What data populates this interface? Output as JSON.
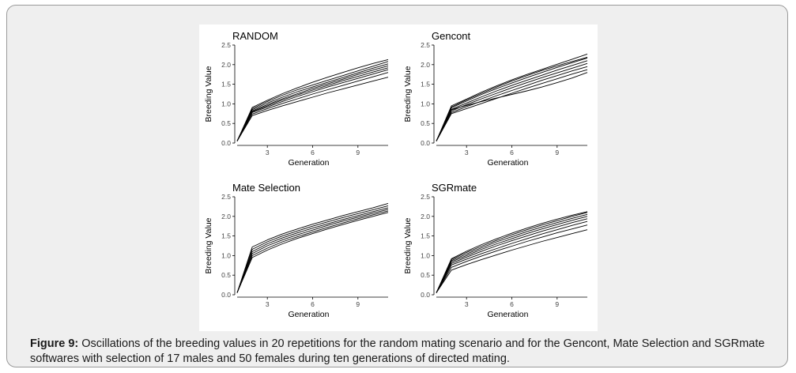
{
  "figure": {
    "caption_label": "Figure 9:",
    "caption_text": " Oscillations of the breeding values in 20 repetitions for the random mating scenario and for the Gencont, Mate Selection and SGRmate softwares with selection of 17 males and 50 females during ten generations of directed mating."
  },
  "chart_data": [
    {
      "type": "line",
      "title": "RANDOM",
      "xlabel": "Generation",
      "ylabel": "Breeding Value",
      "xlim": [
        1,
        11
      ],
      "ylim": [
        0,
        2.5
      ],
      "xticks": [
        "3",
        "6",
        "9"
      ],
      "yticks": [
        "0.0",
        "0.5",
        "1.0",
        "1.5",
        "2.0",
        "2.5"
      ],
      "grid": false,
      "x": [
        1,
        2,
        3,
        4,
        5,
        6,
        7,
        8,
        9,
        10,
        11
      ],
      "series": [
        {
          "values": [
            0.05,
            0.88,
            1.06,
            1.22,
            1.36,
            1.48,
            1.6,
            1.72,
            1.84,
            1.96,
            2.08
          ]
        },
        {
          "values": [
            0.05,
            0.85,
            1.02,
            1.17,
            1.31,
            1.43,
            1.55,
            1.67,
            1.79,
            1.91,
            2.02
          ]
        },
        {
          "values": [
            0.05,
            0.82,
            0.98,
            1.13,
            1.26,
            1.39,
            1.51,
            1.63,
            1.75,
            1.86,
            1.97
          ]
        },
        {
          "values": [
            0.05,
            0.8,
            0.95,
            1.1,
            1.23,
            1.35,
            1.47,
            1.59,
            1.7,
            1.81,
            1.92
          ]
        },
        {
          "values": [
            0.05,
            0.78,
            0.92,
            1.06,
            1.19,
            1.31,
            1.43,
            1.54,
            1.65,
            1.76,
            1.87
          ]
        },
        {
          "values": [
            0.05,
            0.74,
            0.88,
            1.01,
            1.13,
            1.25,
            1.36,
            1.47,
            1.58,
            1.69,
            1.8
          ]
        },
        {
          "values": [
            0.05,
            0.7,
            0.83,
            0.95,
            1.06,
            1.17,
            1.28,
            1.38,
            1.48,
            1.58,
            1.68
          ]
        },
        {
          "values": [
            0.05,
            0.91,
            1.09,
            1.26,
            1.41,
            1.55,
            1.68,
            1.8,
            1.92,
            2.03,
            2.13
          ]
        }
      ]
    },
    {
      "type": "line",
      "title": "Gencont",
      "xlabel": "Generation",
      "ylabel": "Breeding Value",
      "xlim": [
        1,
        11
      ],
      "ylim": [
        0,
        2.5
      ],
      "xticks": [
        "3",
        "6",
        "9"
      ],
      "yticks": [
        "0.0",
        "0.5",
        "1.0",
        "1.5",
        "2.0",
        "2.5"
      ],
      "grid": false,
      "x": [
        1,
        2,
        3,
        4,
        5,
        6,
        7,
        8,
        9,
        10,
        11
      ],
      "series": [
        {
          "values": [
            0.05,
            0.95,
            1.12,
            1.3,
            1.46,
            1.61,
            1.75,
            1.88,
            2.01,
            2.14,
            2.27
          ]
        },
        {
          "values": [
            0.05,
            0.9,
            1.07,
            1.24,
            1.39,
            1.53,
            1.67,
            1.8,
            1.93,
            2.05,
            2.17
          ]
        },
        {
          "values": [
            0.05,
            0.86,
            1.02,
            1.18,
            1.33,
            1.47,
            1.6,
            1.73,
            1.86,
            1.98,
            2.1
          ]
        },
        {
          "values": [
            0.05,
            0.82,
            0.98,
            1.13,
            1.27,
            1.41,
            1.54,
            1.67,
            1.79,
            1.91,
            2.03
          ]
        },
        {
          "values": [
            0.05,
            0.78,
            0.93,
            1.07,
            1.21,
            1.34,
            1.47,
            1.6,
            1.72,
            1.84,
            1.95
          ]
        },
        {
          "values": [
            0.05,
            0.75,
            0.88,
            1.01,
            1.14,
            1.27,
            1.4,
            1.52,
            1.64,
            1.76,
            1.87
          ]
        },
        {
          "values": [
            0.05,
            0.85,
            0.96,
            1.06,
            1.15,
            1.24,
            1.33,
            1.43,
            1.54,
            1.66,
            1.8
          ]
        },
        {
          "values": [
            0.05,
            0.92,
            1.1,
            1.27,
            1.43,
            1.58,
            1.72,
            1.85,
            1.97,
            2.08,
            2.19
          ]
        }
      ]
    },
    {
      "type": "line",
      "title": "Mate Selection",
      "xlabel": "Generation",
      "ylabel": "Breeding Value",
      "xlim": [
        1,
        11
      ],
      "ylim": [
        0,
        2.5
      ],
      "xticks": [
        "3",
        "6",
        "9"
      ],
      "yticks": [
        "0.0",
        "0.5",
        "1.0",
        "1.5",
        "2.0",
        "2.5"
      ],
      "grid": false,
      "x": [
        1,
        2,
        3,
        4,
        5,
        6,
        7,
        8,
        9,
        10,
        11
      ],
      "series": [
        {
          "values": [
            0.05,
            1.22,
            1.4,
            1.55,
            1.68,
            1.8,
            1.91,
            2.02,
            2.12,
            2.22,
            2.33
          ]
        },
        {
          "values": [
            0.05,
            1.16,
            1.35,
            1.5,
            1.63,
            1.75,
            1.86,
            1.97,
            2.07,
            2.17,
            2.27
          ]
        },
        {
          "values": [
            0.05,
            1.1,
            1.3,
            1.45,
            1.58,
            1.7,
            1.81,
            1.92,
            2.02,
            2.12,
            2.22
          ]
        },
        {
          "values": [
            0.05,
            1.05,
            1.25,
            1.4,
            1.53,
            1.65,
            1.77,
            1.88,
            1.98,
            2.08,
            2.18
          ]
        },
        {
          "values": [
            0.05,
            1.0,
            1.19,
            1.35,
            1.48,
            1.6,
            1.72,
            1.83,
            1.94,
            2.04,
            2.14
          ]
        },
        {
          "values": [
            0.05,
            0.95,
            1.14,
            1.3,
            1.44,
            1.56,
            1.68,
            1.79,
            1.9,
            2.0,
            2.1
          ]
        }
      ]
    },
    {
      "type": "line",
      "title": "SGRmate",
      "xlabel": "Generation",
      "ylabel": "Breeding Value",
      "xlim": [
        1,
        11
      ],
      "ylim": [
        0,
        2.5
      ],
      "xticks": [
        "3",
        "6",
        "9"
      ],
      "yticks": [
        "0.0",
        "0.5",
        "1.0",
        "1.5",
        "2.0",
        "2.5"
      ],
      "grid": false,
      "x": [
        1,
        2,
        3,
        4,
        5,
        6,
        7,
        8,
        9,
        10,
        11
      ],
      "series": [
        {
          "values": [
            0.05,
            0.9,
            1.08,
            1.24,
            1.39,
            1.53,
            1.66,
            1.78,
            1.89,
            2.0,
            2.1
          ]
        },
        {
          "values": [
            0.05,
            0.87,
            1.04,
            1.2,
            1.35,
            1.48,
            1.61,
            1.73,
            1.84,
            1.95,
            2.05
          ]
        },
        {
          "values": [
            0.05,
            0.84,
            1.0,
            1.16,
            1.3,
            1.43,
            1.56,
            1.68,
            1.79,
            1.9,
            2.0
          ]
        },
        {
          "values": [
            0.05,
            0.8,
            0.96,
            1.11,
            1.25,
            1.38,
            1.5,
            1.62,
            1.73,
            1.84,
            1.94
          ]
        },
        {
          "values": [
            0.05,
            0.76,
            0.91,
            1.05,
            1.18,
            1.31,
            1.43,
            1.55,
            1.66,
            1.77,
            1.87
          ]
        },
        {
          "values": [
            0.05,
            0.7,
            0.85,
            0.99,
            1.12,
            1.24,
            1.36,
            1.47,
            1.58,
            1.68,
            1.78
          ]
        },
        {
          "values": [
            0.05,
            0.63,
            0.77,
            0.9,
            1.02,
            1.14,
            1.25,
            1.36,
            1.46,
            1.56,
            1.66
          ]
        },
        {
          "values": [
            0.05,
            0.92,
            1.11,
            1.28,
            1.43,
            1.57,
            1.7,
            1.82,
            1.93,
            2.03,
            2.12
          ]
        }
      ]
    }
  ]
}
